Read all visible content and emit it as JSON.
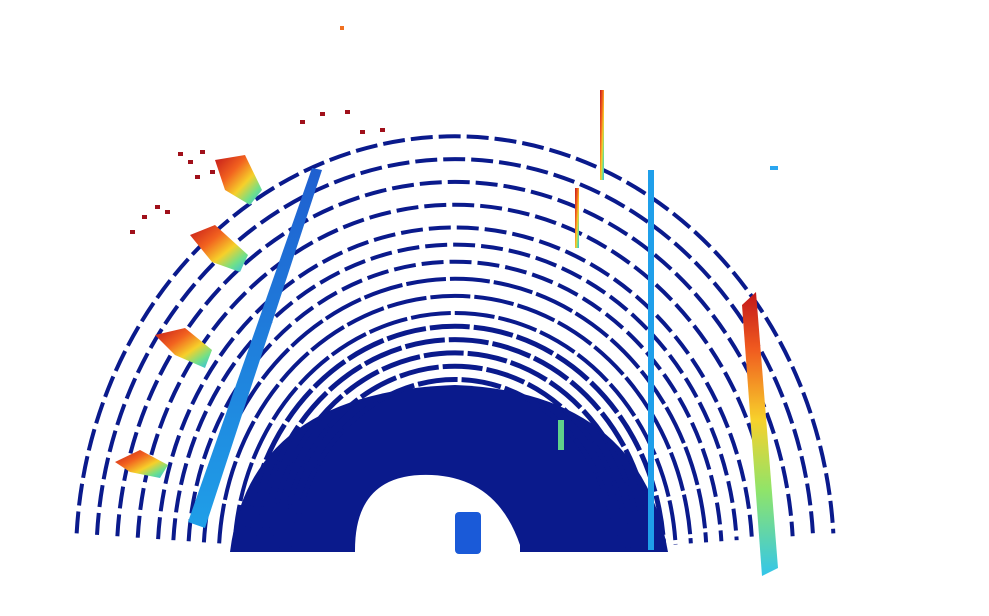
{
  "scene": {
    "type": "lidar-point-cloud-bev",
    "background": "#ffffff",
    "colormap": "jet",
    "ground_color": "#0a1a8c",
    "wall_gradient": [
      "#1f6fd8",
      "#2aa6f0"
    ],
    "right_wall_gradient": [
      "#30c8e8",
      "#7fe07a",
      "#f7c32a",
      "#f0421e",
      "#c0181a"
    ],
    "objects": [
      "ground-rings",
      "left-wall",
      "right-pole-wall",
      "tall-right-wall",
      "left-trees",
      "ego-vehicle",
      "sign-poles"
    ]
  }
}
